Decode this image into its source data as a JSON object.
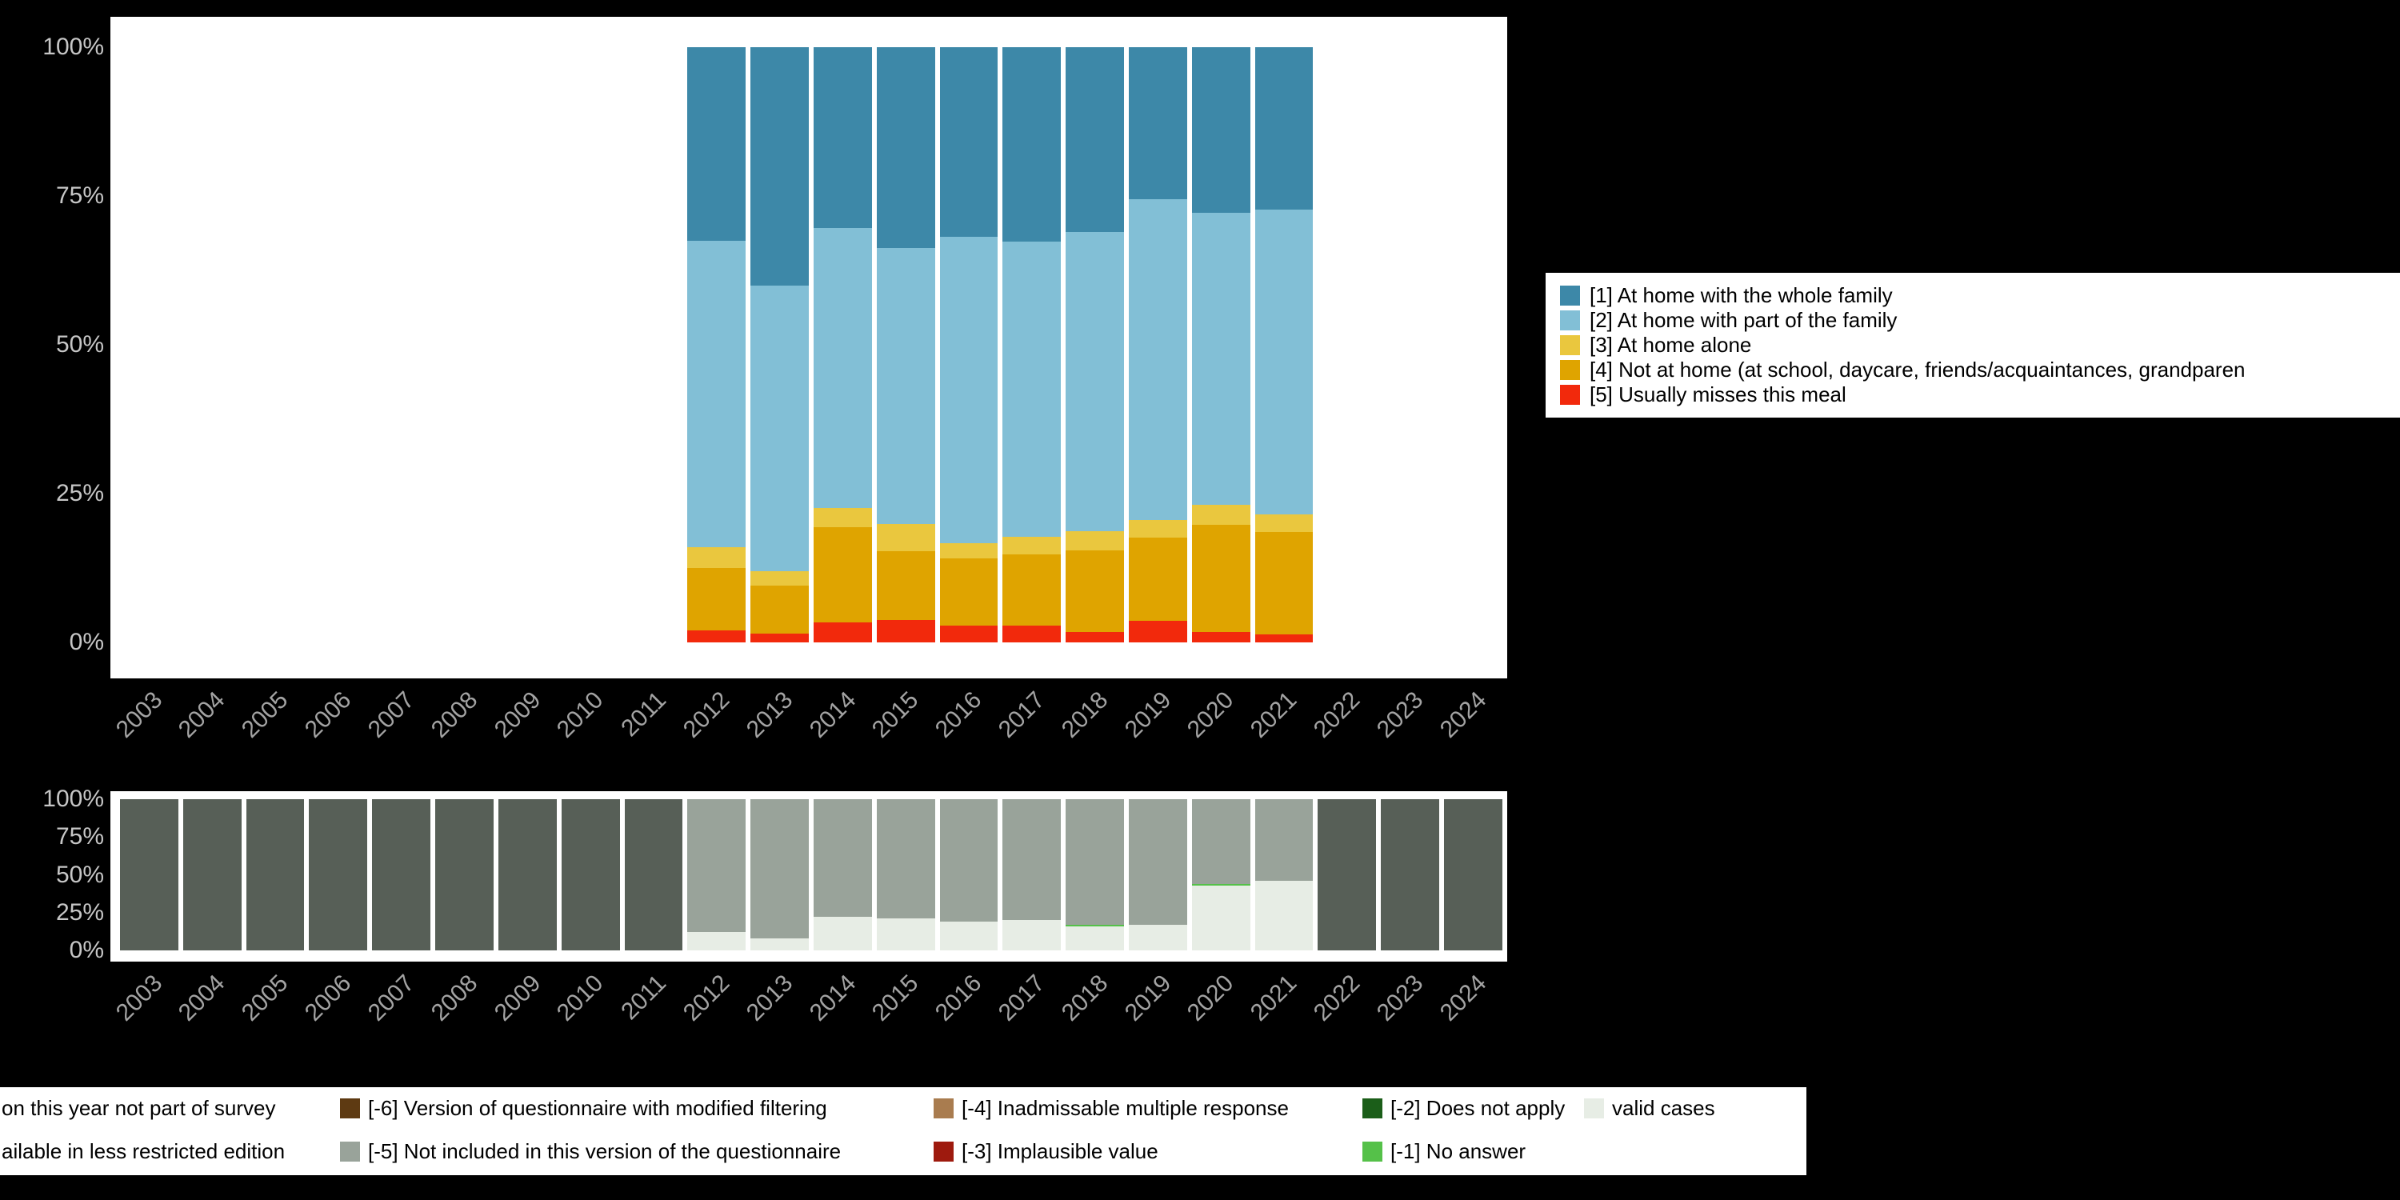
{
  "page": {
    "background": "#000000"
  },
  "chart_data": [
    {
      "id": "meal-location-by-year",
      "type": "bar",
      "stacked": true,
      "unit": "percent",
      "title": "",
      "xlabel": "",
      "ylabel": "",
      "ylim": [
        0,
        100
      ],
      "ytick_labels": [
        "0%",
        "25%",
        "50%",
        "75%",
        "100%"
      ],
      "grid": false,
      "legend_position": "right",
      "categories": [
        "2003",
        "2004",
        "2005",
        "2006",
        "2007",
        "2008",
        "2009",
        "2010",
        "2011",
        "2012",
        "2013",
        "2014",
        "2015",
        "2016",
        "2017",
        "2018",
        "2019",
        "2020",
        "2021",
        "2022",
        "2023",
        "2024"
      ],
      "series": [
        {
          "name": "[1] At home with the whole family",
          "color": "#3d88a8",
          "values": [
            0,
            0,
            0,
            0,
            0,
            0,
            0,
            0,
            0,
            32.5,
            40,
            30.4,
            33.7,
            31.9,
            32.6,
            31,
            25.5,
            27.8,
            27.3,
            0,
            0,
            0
          ]
        },
        {
          "name": "[2] At home with part of the family",
          "color": "#82bfd6",
          "values": [
            0,
            0,
            0,
            0,
            0,
            0,
            0,
            0,
            0,
            51.5,
            48,
            47,
            46.4,
            51.4,
            49.6,
            50.3,
            53.9,
            49.1,
            51.2,
            0,
            0,
            0
          ]
        },
        {
          "name": "[3] At home alone",
          "color": "#eac73e",
          "values": [
            0,
            0,
            0,
            0,
            0,
            0,
            0,
            0,
            0,
            3.5,
            2.5,
            3.3,
            4.6,
            2.6,
            3,
            3.3,
            3,
            3.3,
            3,
            0,
            0,
            0
          ]
        },
        {
          "name": "[4] Not at home (at school, daycare, friends/acquaintances, grandparen",
          "color": "#dfa400",
          "values": [
            0,
            0,
            0,
            0,
            0,
            0,
            0,
            0,
            0,
            10.5,
            8,
            16,
            11.5,
            11.3,
            12,
            13.6,
            14,
            18,
            17.2,
            0,
            0,
            0
          ]
        },
        {
          "name": "[5] Usually misses this meal",
          "color": "#f2290c",
          "values": [
            0,
            0,
            0,
            0,
            0,
            0,
            0,
            0,
            0,
            2,
            1.5,
            3.3,
            3.8,
            2.8,
            2.8,
            1.8,
            3.6,
            1.8,
            1.3,
            0,
            0,
            0
          ]
        }
      ]
    },
    {
      "id": "missing-values-by-year",
      "type": "bar",
      "stacked": true,
      "unit": "percent",
      "title": "",
      "xlabel": "",
      "ylabel": "",
      "ylim": [
        0,
        100
      ],
      "ytick_labels": [
        "0%",
        "25%",
        "50%",
        "75%",
        "100%"
      ],
      "grid": false,
      "legend_position": "bottom",
      "categories": [
        "2003",
        "2004",
        "2005",
        "2006",
        "2007",
        "2008",
        "2009",
        "2010",
        "2011",
        "2012",
        "2013",
        "2014",
        "2015",
        "2016",
        "2017",
        "2018",
        "2019",
        "2020",
        "2021",
        "2022",
        "2023",
        "2024"
      ],
      "series": [
        {
          "name": "valid cases",
          "color": "#e7ede5",
          "values": [
            0,
            0,
            0,
            0,
            0,
            0,
            0,
            0,
            0,
            12,
            8,
            22,
            21,
            19,
            20,
            16,
            17,
            43,
            46,
            0,
            0,
            0
          ]
        },
        {
          "name": "[-1] No answer",
          "color": "#55c149",
          "values": [
            0,
            0,
            0,
            0,
            0,
            0,
            0,
            0,
            0,
            0,
            0,
            0,
            0,
            0,
            0,
            1,
            0,
            1,
            0,
            0,
            0,
            0
          ]
        },
        {
          "name": "[-5] Not included in this version of the questionnaire",
          "color": "#99a39a",
          "values": [
            0,
            0,
            0,
            0,
            0,
            0,
            0,
            0,
            0,
            88,
            92,
            78,
            79,
            81,
            80,
            83,
            83,
            56,
            54,
            0,
            0,
            0
          ]
        },
        {
          "name": "on this year not part of survey",
          "color": "#575f57",
          "values": [
            100,
            100,
            100,
            100,
            100,
            100,
            100,
            100,
            100,
            0,
            0,
            0,
            0,
            0,
            0,
            0,
            0,
            0,
            0,
            100,
            100,
            100
          ]
        }
      ]
    }
  ],
  "missing_legend": {
    "columns": [
      {
        "items": [
          {
            "label": "on this year not part of survey",
            "color": null
          },
          {
            "label": "ailable in less restricted edition",
            "color": null
          }
        ]
      },
      {
        "items": [
          {
            "label": "[-6] Version of questionnaire with modified filtering",
            "color": "#5e3a12"
          },
          {
            "label": "[-5] Not included in this version of the questionnaire",
            "color": "#99a39a"
          }
        ]
      },
      {
        "items": [
          {
            "label": "[-4] Inadmissable multiple response",
            "color": "#a97c4f"
          },
          {
            "label": "[-3] Implausible value",
            "color": "#9e1a0e"
          }
        ]
      },
      {
        "items": [
          {
            "label": "[-2] Does not apply",
            "color": "#1b5e19"
          },
          {
            "label": "[-1] No answer",
            "color": "#55c149"
          }
        ]
      },
      {
        "items": [
          {
            "label": "valid cases",
            "color": "#e7ede5"
          }
        ]
      }
    ]
  }
}
